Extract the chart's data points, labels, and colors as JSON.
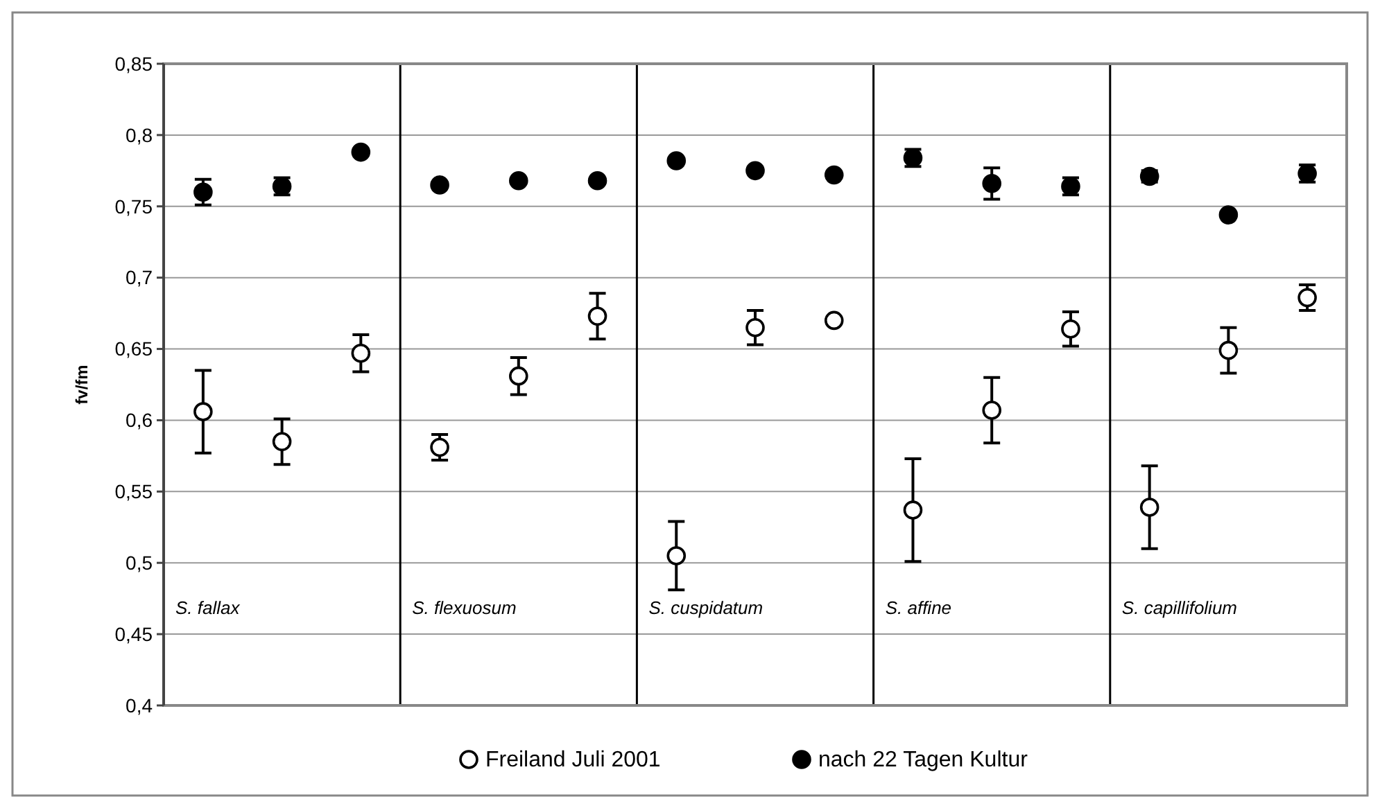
{
  "chart_data": {
    "type": "scatter",
    "ylabel": "fv/fm",
    "ylim": [
      0.4,
      0.85
    ],
    "yticks": [
      {
        "value": 0.4,
        "label": "0,4"
      },
      {
        "value": 0.45,
        "label": "0,45"
      },
      {
        "value": 0.5,
        "label": "0,5"
      },
      {
        "value": 0.55,
        "label": "0,55"
      },
      {
        "value": 0.6,
        "label": "0,6"
      },
      {
        "value": 0.65,
        "label": "0,65"
      },
      {
        "value": 0.7,
        "label": "0,7"
      },
      {
        "value": 0.75,
        "label": "0,75"
      },
      {
        "value": 0.8,
        "label": "0,8"
      },
      {
        "value": 0.85,
        "label": "0,85"
      }
    ],
    "tick_labels": "y",
    "grid": "y",
    "legend": "bottom",
    "marker": "circle",
    "categories": [
      null,
      null,
      null,
      null,
      null,
      null,
      null,
      null,
      null,
      null,
      null,
      null,
      null,
      null,
      null
    ],
    "series": [
      {
        "name": "Freiland Juli 2001",
        "color": "#ffffff",
        "values": [
          0.606,
          0.585,
          0.647,
          0.581,
          0.631,
          0.673,
          0.505,
          0.665,
          0.67,
          0.537,
          0.607,
          0.664,
          0.539,
          0.649,
          0.686
        ],
        "errors": [
          0.029,
          0.016,
          0.013,
          0.009,
          0.013,
          0.016,
          0.024,
          0.012,
          null,
          0.036,
          0.023,
          0.012,
          0.029,
          0.016,
          0.009
        ]
      },
      {
        "name": "nach 22 Tagen Kultur",
        "color": "#000000",
        "values": [
          0.76,
          0.764,
          0.788,
          0.765,
          0.768,
          0.768,
          0.782,
          0.775,
          0.772,
          0.784,
          0.766,
          0.764,
          0.771,
          0.744,
          0.773
        ],
        "errors": [
          0.009,
          0.006,
          0.002,
          null,
          null,
          null,
          null,
          null,
          null,
          0.006,
          0.011,
          0.006,
          0.004,
          null,
          0.006
        ]
      }
    ],
    "annotations": [
      "S. fallax",
      "S. flexuosum",
      "S. cuspidatum",
      "S. affine",
      "S. capillifolium"
    ]
  }
}
